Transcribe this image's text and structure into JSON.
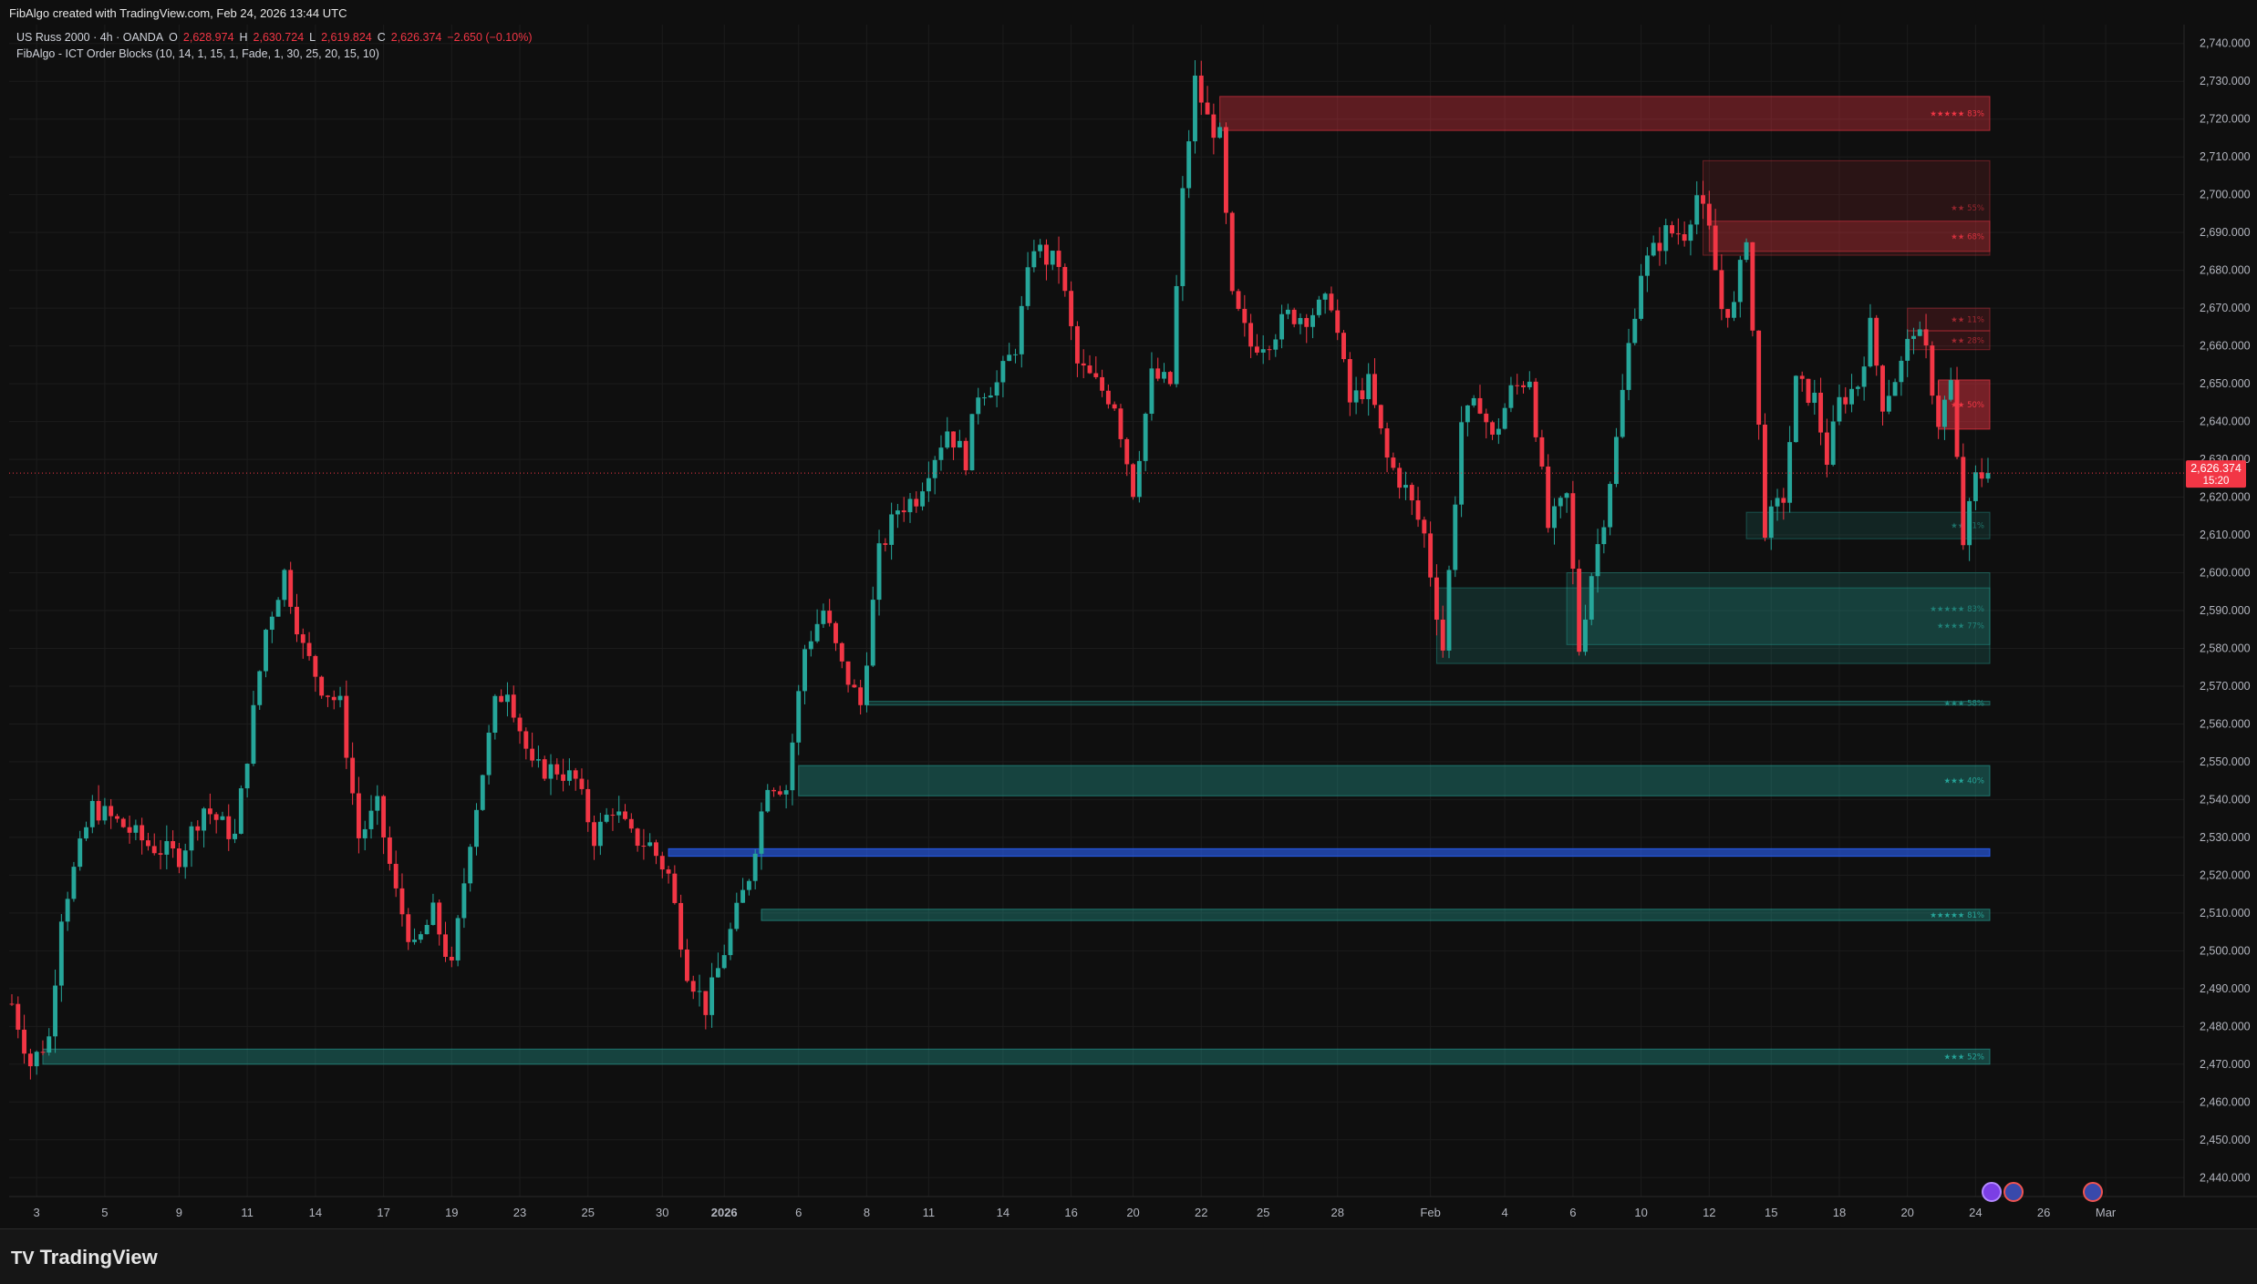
{
  "header": {
    "credit": "FibAlgo created with TradingView.com, Feb 24, 2026 13:44 UTC"
  },
  "legend": {
    "symbol": "US Russ 2000 · 4h · OANDA",
    "ohlc": {
      "o_label": "O",
      "o": "2,628.974",
      "h_label": "H",
      "h": "2,630.724",
      "l_label": "L",
      "l": "2,619.824",
      "c_label": "C",
      "c": "2,626.374",
      "change": "−2.650 (−0.10%)"
    },
    "indicator": "FibAlgo - ICT Order Blocks (10, 14, 1, 15, 1, Fade, 1, 30, 25, 20, 15, 10)"
  },
  "footer": {
    "brand": "TradingView",
    "brand_mark": "TV"
  },
  "colors": {
    "bull": "#26a69a",
    "bear": "#f23645",
    "bg": "#0f0f0f",
    "grid": "#1c1c1c",
    "pivot": "#2962ff"
  },
  "chart_data": {
    "type": "candlestick",
    "ylim": [
      2435,
      2745
    ],
    "price_ticks": [
      "2,740.000",
      "2,730.000",
      "2,720.000",
      "2,710.000",
      "2,700.000",
      "2,690.000",
      "2,680.000",
      "2,670.000",
      "2,660.000",
      "2,650.000",
      "2,640.000",
      "2,630.000",
      "2,620.000",
      "2,610.000",
      "2,600.000",
      "2,590.000",
      "2,580.000",
      "2,570.000",
      "2,560.000",
      "2,550.000",
      "2,540.000",
      "2,530.000",
      "2,520.000",
      "2,510.000",
      "2,500.000",
      "2,490.000",
      "2,480.000",
      "2,470.000",
      "2,460.000",
      "2,450.000",
      "2,440.000"
    ],
    "price_tick_values": [
      2740,
      2730,
      2720,
      2710,
      2700,
      2690,
      2680,
      2670,
      2660,
      2650,
      2640,
      2630,
      2620,
      2610,
      2600,
      2590,
      2580,
      2570,
      2560,
      2550,
      2540,
      2530,
      2520,
      2510,
      2500,
      2490,
      2480,
      2470,
      2460,
      2450,
      2440
    ],
    "time_ticks": [
      {
        "label": "3",
        "bar": 4
      },
      {
        "label": "5",
        "bar": 15
      },
      {
        "label": "9",
        "bar": 27
      },
      {
        "label": "11",
        "bar": 38
      },
      {
        "label": "14",
        "bar": 49
      },
      {
        "label": "17",
        "bar": 60
      },
      {
        "label": "19",
        "bar": 71
      },
      {
        "label": "23",
        "bar": 82
      },
      {
        "label": "25",
        "bar": 93
      },
      {
        "label": "30",
        "bar": 105
      },
      {
        "label": "2026",
        "bar": 115
      },
      {
        "label": "6",
        "bar": 127
      },
      {
        "label": "8",
        "bar": 138
      },
      {
        "label": "11",
        "bar": 148
      },
      {
        "label": "14",
        "bar": 160
      },
      {
        "label": "16",
        "bar": 171
      },
      {
        "label": "20",
        "bar": 181
      },
      {
        "label": "22",
        "bar": 192
      },
      {
        "label": "25",
        "bar": 202
      },
      {
        "label": "28",
        "bar": 214
      },
      {
        "label": "Feb",
        "bar": 229
      },
      {
        "label": "4",
        "bar": 241
      },
      {
        "label": "6",
        "bar": 252
      },
      {
        "label": "10",
        "bar": 263
      },
      {
        "label": "12",
        "bar": 274
      },
      {
        "label": "15",
        "bar": 284
      },
      {
        "label": "18",
        "bar": 295
      },
      {
        "label": "20",
        "bar": 306
      },
      {
        "label": "24",
        "bar": 317
      },
      {
        "label": "26",
        "bar": 328
      },
      {
        "label": "Mar",
        "bar": 338
      }
    ],
    "last_price": "2,626.374",
    "last_price_value": 2626.374,
    "countdown": "15:20",
    "order_blocks": [
      {
        "kind": "bear",
        "top": 2726,
        "bottom": 2717,
        "start": 195,
        "label": "★★★★★ 83%",
        "opacity": 0.35
      },
      {
        "kind": "bear",
        "top": 2709,
        "bottom": 2684,
        "start": 273,
        "label": "★★ 55%",
        "opacity": 0.12
      },
      {
        "kind": "bear",
        "top": 2693,
        "bottom": 2685,
        "start": 274,
        "label": "★★ 68%",
        "opacity": 0.25
      },
      {
        "kind": "bear",
        "top": 2670,
        "bottom": 2664,
        "start": 306,
        "label": "★★ 11%",
        "opacity": 0.15
      },
      {
        "kind": "bear",
        "top": 2664,
        "bottom": 2659,
        "start": 306,
        "label": "★★ 28%",
        "opacity": 0.15
      },
      {
        "kind": "bear",
        "top": 2651,
        "bottom": 2638,
        "start": 311,
        "label": "★★ 50%",
        "opacity": 0.45
      },
      {
        "kind": "bull",
        "top": 2616,
        "bottom": 2609,
        "start": 280,
        "label": "★★ 61%",
        "opacity": 0.15
      },
      {
        "kind": "bull",
        "top": 2600,
        "bottom": 2581,
        "start": 251,
        "label": "★★★★★ 83%",
        "opacity": 0.18
      },
      {
        "kind": "bull",
        "top": 2596,
        "bottom": 2576,
        "start": 230,
        "label": "★★★★ 77%",
        "opacity": 0.18
      },
      {
        "kind": "bull",
        "top": 2566,
        "bottom": 2565,
        "start": 138,
        "label": "★★★ 58%",
        "opacity": 0.25
      },
      {
        "kind": "bull",
        "top": 2549,
        "bottom": 2541,
        "start": 127,
        "label": "★★★ 40%",
        "opacity": 0.35
      },
      {
        "kind": "pivot",
        "top": 2527,
        "bottom": 2525,
        "start": 106,
        "label": "",
        "opacity": 0.6
      },
      {
        "kind": "bull",
        "top": 2511,
        "bottom": 2508,
        "start": 121,
        "label": "★★★★★ 81%",
        "opacity": 0.35
      },
      {
        "kind": "bull",
        "top": 2474,
        "bottom": 2470,
        "start": 5,
        "label": "★★★ 52%",
        "opacity": 0.35
      }
    ],
    "anchors": [
      [
        0,
        2486
      ],
      [
        3,
        2470
      ],
      [
        6,
        2477
      ],
      [
        8,
        2510
      ],
      [
        13,
        2538
      ],
      [
        18,
        2533
      ],
      [
        22,
        2528
      ],
      [
        27,
        2525
      ],
      [
        31,
        2538
      ],
      [
        36,
        2530
      ],
      [
        41,
        2585
      ],
      [
        44,
        2600
      ],
      [
        47,
        2580
      ],
      [
        50,
        2570
      ],
      [
        53,
        2565
      ],
      [
        56,
        2530
      ],
      [
        59,
        2538
      ],
      [
        62,
        2515
      ],
      [
        65,
        2500
      ],
      [
        68,
        2510
      ],
      [
        71,
        2495
      ],
      [
        74,
        2530
      ],
      [
        78,
        2565
      ],
      [
        80,
        2570
      ],
      [
        84,
        2548
      ],
      [
        88,
        2548
      ],
      [
        91,
        2545
      ],
      [
        94,
        2530
      ],
      [
        97,
        2538
      ],
      [
        100,
        2530
      ],
      [
        103,
        2528
      ],
      [
        106,
        2520
      ],
      [
        109,
        2495
      ],
      [
        112,
        2485
      ],
      [
        116,
        2505
      ],
      [
        119,
        2520
      ],
      [
        122,
        2545
      ],
      [
        125,
        2543
      ],
      [
        128,
        2580
      ],
      [
        131,
        2590
      ],
      [
        134,
        2575
      ],
      [
        137,
        2565
      ],
      [
        140,
        2605
      ],
      [
        143,
        2617
      ],
      [
        146,
        2620
      ],
      [
        148,
        2628
      ],
      [
        151,
        2638
      ],
      [
        154,
        2630
      ],
      [
        156,
        2648
      ],
      [
        159,
        2650
      ],
      [
        162,
        2660
      ],
      [
        165,
        2687
      ],
      [
        167,
        2683
      ],
      [
        169,
        2682
      ],
      [
        172,
        2655
      ],
      [
        175,
        2650
      ],
      [
        178,
        2645
      ],
      [
        181,
        2622
      ],
      [
        184,
        2652
      ],
      [
        187,
        2650
      ],
      [
        189,
        2700
      ],
      [
        191,
        2730
      ],
      [
        193,
        2720
      ],
      [
        195,
        2715
      ],
      [
        197,
        2672
      ],
      [
        200,
        2660
      ],
      [
        203,
        2662
      ],
      [
        206,
        2668
      ],
      [
        209,
        2668
      ],
      [
        213,
        2672
      ],
      [
        216,
        2645
      ],
      [
        219,
        2650
      ],
      [
        222,
        2630
      ],
      [
        225,
        2622
      ],
      [
        228,
        2610
      ],
      [
        231,
        2580
      ],
      [
        234,
        2640
      ],
      [
        237,
        2645
      ],
      [
        239,
        2635
      ],
      [
        242,
        2648
      ],
      [
        245,
        2652
      ],
      [
        248,
        2612
      ],
      [
        251,
        2620
      ],
      [
        253,
        2580
      ],
      [
        255,
        2600
      ],
      [
        257,
        2615
      ],
      [
        259,
        2635
      ],
      [
        261,
        2660
      ],
      [
        263,
        2680
      ],
      [
        265,
        2685
      ],
      [
        267,
        2690
      ],
      [
        270,
        2690
      ],
      [
        272,
        2700
      ],
      [
        274,
        2690
      ],
      [
        276,
        2670
      ],
      [
        278,
        2670
      ],
      [
        280,
        2690
      ],
      [
        283,
        2612
      ],
      [
        286,
        2620
      ],
      [
        288,
        2650
      ],
      [
        291,
        2646
      ],
      [
        293,
        2630
      ],
      [
        295,
        2645
      ],
      [
        298,
        2650
      ],
      [
        300,
        2665
      ],
      [
        302,
        2645
      ],
      [
        305,
        2655
      ],
      [
        307,
        2665
      ],
      [
        309,
        2658
      ],
      [
        311,
        2640
      ],
      [
        313,
        2650
      ],
      [
        315,
        2608
      ],
      [
        317,
        2625
      ],
      [
        319,
        2626.4
      ]
    ],
    "seed": 7
  }
}
